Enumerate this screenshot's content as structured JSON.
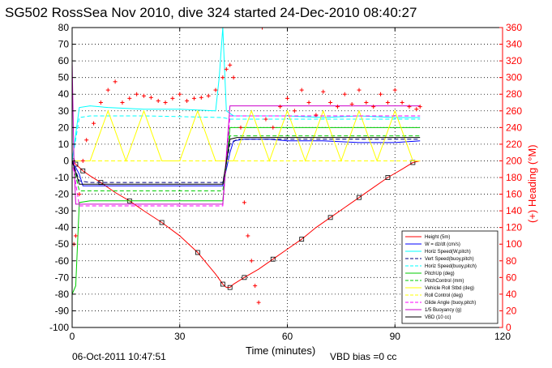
{
  "title": "SG502 RossSea Nov 2010, dive 324 started 24-Dec-2010 08:40:27",
  "footer_date": "06-Oct-2011 10:47:51",
  "footer_vbd": "VBD bias =0 cc",
  "chart_data": {
    "type": "line",
    "xlabel": "Time (minutes)",
    "ylabel_left": "",
    "ylabel_right": "(+) Heading (°M)",
    "xlim": [
      0,
      120
    ],
    "ylim_left": [
      -100,
      80
    ],
    "ylim_right": [
      0,
      360
    ],
    "x_ticks": [
      0,
      30,
      60,
      90,
      120
    ],
    "y_ticks_left": [
      80,
      70,
      60,
      50,
      40,
      30,
      20,
      10,
      0,
      -10,
      -20,
      -30,
      -40,
      -50,
      -60,
      -70,
      -80,
      -90,
      -100
    ],
    "y_ticks_right": [
      360,
      340,
      320,
      300,
      280,
      260,
      240,
      220,
      200,
      180,
      160,
      140,
      120,
      100,
      80,
      60,
      40,
      20,
      0
    ],
    "grid": true,
    "legend_position": "bottom-right",
    "colors": {
      "right_axis": "#ff0000",
      "left_axis": "#000000"
    },
    "series": [
      {
        "name": "Height (5m)",
        "color": "#ff0000",
        "style": "line-point",
        "x": [
          0,
          0.5,
          1,
          2,
          3,
          5,
          8,
          12,
          16,
          20,
          25,
          30,
          35,
          40,
          42,
          43,
          44,
          45,
          48,
          52,
          56,
          60,
          64,
          68,
          72,
          76,
          80,
          84,
          88,
          92,
          95,
          97
        ],
        "y": [
          0,
          -1,
          -2,
          -4,
          -6,
          -9,
          -13,
          -19,
          -24,
          -30,
          -37,
          -45,
          -55,
          -68,
          -74,
          -76,
          -76,
          -74,
          -70,
          -65,
          -59,
          -53,
          -47,
          -40,
          -34,
          -28,
          -22,
          -16,
          -10,
          -5,
          -1,
          0
        ]
      },
      {
        "name": "W = dz/dt (cm/s)",
        "color": "#0000ff",
        "style": "line",
        "x": [
          0,
          2,
          3,
          5,
          10,
          20,
          30,
          42,
          44,
          45,
          48,
          55,
          60,
          70,
          80,
          90,
          97
        ],
        "y": [
          0,
          -8,
          -15,
          -15,
          -15,
          -15,
          -15,
          -15,
          5,
          12,
          13,
          13,
          12,
          12,
          11,
          11,
          12
        ]
      },
      {
        "name": "Horiz Speed(W,pitch)",
        "color": "#00ffff",
        "style": "line",
        "x": [
          0,
          2,
          5,
          10,
          20,
          30,
          40,
          41,
          42,
          43,
          45,
          50,
          60,
          70,
          80,
          90,
          97
        ],
        "y": [
          0,
          32,
          33,
          32,
          31,
          31,
          30,
          50,
          80,
          30,
          27,
          27,
          27,
          26,
          27,
          26,
          26
        ]
      },
      {
        "name": "Vert Speed(buoy,pitch)",
        "color": "#000080",
        "style": "dashed",
        "x": [
          0,
          2,
          5,
          20,
          42,
          44,
          46,
          60,
          80,
          97
        ],
        "y": [
          0,
          -12,
          -13,
          -13,
          -13,
          10,
          13,
          13,
          13,
          13
        ]
      },
      {
        "name": "Horiz Speed(buoy,pitch)",
        "color": "#00ffff",
        "style": "dashed",
        "x": [
          0,
          2,
          5,
          20,
          42,
          44,
          46,
          60,
          80,
          97
        ],
        "y": [
          0,
          26,
          27,
          27,
          26,
          25,
          25,
          25,
          25,
          25
        ]
      },
      {
        "name": "PitchUp (deg)",
        "color": "#00cc00",
        "style": "line",
        "x": [
          0,
          1,
          2,
          5,
          20,
          42,
          44,
          46,
          60,
          80,
          97
        ],
        "y": [
          -80,
          -75,
          -25,
          -24,
          -24,
          -24,
          20,
          20,
          20,
          20,
          20
        ]
      },
      {
        "name": "PitchControl (mm)",
        "color": "#00cc00",
        "style": "dashed",
        "x": [
          0,
          2,
          5,
          42,
          44,
          46,
          97
        ],
        "y": [
          0,
          -18,
          -18,
          -18,
          15,
          15,
          15
        ]
      },
      {
        "name": "Vehicle Roll Stbd (deg)",
        "color": "#ffff00",
        "style": "line",
        "x": [
          0,
          5,
          10,
          15,
          20,
          25,
          30,
          35,
          40,
          45,
          50,
          55,
          60,
          65,
          70,
          75,
          80,
          85,
          90,
          95,
          97
        ],
        "y": [
          0,
          0,
          30,
          0,
          30,
          0,
          0,
          30,
          0,
          0,
          30,
          0,
          30,
          0,
          30,
          0,
          30,
          0,
          30,
          0,
          0
        ]
      },
      {
        "name": "Roll Control (deg)",
        "color": "#ffff00",
        "style": "dashed",
        "x": [
          0,
          10,
          20,
          30,
          40,
          45,
          55,
          65,
          75,
          85,
          97
        ],
        "y": [
          0,
          0,
          0,
          0,
          0,
          0,
          0,
          0,
          0,
          0,
          0
        ]
      },
      {
        "name": "Glide Angle (buoy,pitch)",
        "color": "#ff00ff",
        "style": "dashed",
        "x": [
          0,
          2,
          5,
          42,
          44,
          46,
          97
        ],
        "y": [
          0,
          -27,
          -27,
          -27,
          27,
          27,
          27
        ]
      },
      {
        "name": "1/5 Buoyancy (g)",
        "color": "#cc00cc",
        "style": "line",
        "x": [
          0,
          0.5,
          1,
          2,
          5,
          42,
          44,
          46,
          97
        ],
        "y": [
          60,
          0,
          -26,
          -26,
          -26,
          -26,
          33,
          33,
          33
        ]
      },
      {
        "name": "VBD (10 cc)",
        "color": "#000000",
        "style": "line",
        "x": [
          0,
          2,
          5,
          42,
          44,
          46,
          97
        ],
        "y": [
          0,
          -14,
          -14,
          -14,
          13,
          14,
          14
        ]
      }
    ],
    "heading_series": {
      "name": "Heading",
      "axis": "right",
      "color": "#ff0000",
      "marker": "+",
      "x": [
        0.5,
        1,
        2,
        3,
        4,
        6,
        8,
        10,
        12,
        14,
        16,
        18,
        20,
        22,
        24,
        26,
        28,
        30,
        32,
        34,
        36,
        38,
        40,
        42,
        43,
        44,
        45,
        47,
        48,
        49,
        50,
        51,
        52,
        53,
        54,
        56,
        58,
        60,
        62,
        64,
        66,
        68,
        70,
        72,
        74,
        76,
        78,
        80,
        82,
        84,
        86,
        88,
        90,
        92,
        94,
        96,
        97
      ],
      "y": [
        100,
        110,
        160,
        200,
        225,
        245,
        270,
        285,
        295,
        270,
        275,
        280,
        278,
        276,
        272,
        270,
        275,
        280,
        272,
        275,
        276,
        278,
        285,
        300,
        310,
        315,
        300,
        240,
        150,
        110,
        80,
        50,
        30,
        360,
        250,
        240,
        265,
        275,
        260,
        285,
        270,
        255,
        283,
        270,
        265,
        280,
        268,
        285,
        270,
        265,
        280,
        270,
        285,
        270,
        265,
        262,
        265
      ]
    }
  }
}
